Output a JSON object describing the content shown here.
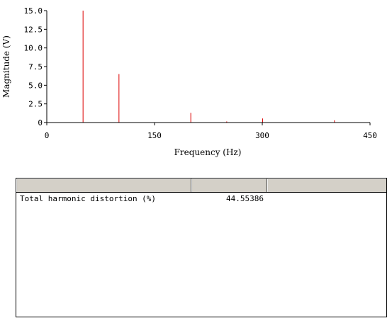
{
  "chart_data": {
    "type": "bar",
    "xlabel": "Frequency (Hz)",
    "ylabel": "Magnitude (V)",
    "xlim": [
      0,
      450
    ],
    "ylim": [
      0,
      15
    ],
    "xticks": [
      0,
      150,
      300,
      450
    ],
    "xtick_labels": [
      "0",
      "150",
      "300",
      "450"
    ],
    "yticks": [
      0,
      2.5,
      5,
      7.5,
      10,
      12.5,
      15
    ],
    "ytick_labels": [
      "0",
      "2.5",
      "5.0",
      "7.5",
      "10.0",
      "12.5",
      "15.0"
    ],
    "grid": false,
    "line_color": "#dd0000",
    "points": [
      {
        "x": 50,
        "y": 15.0
      },
      {
        "x": 100,
        "y": 6.5
      },
      {
        "x": 200,
        "y": 1.3
      },
      {
        "x": 250,
        "y": 0.15
      },
      {
        "x": 300,
        "y": 0.55
      },
      {
        "x": 400,
        "y": 0.3
      }
    ]
  },
  "results": {
    "headers": [
      "",
      "",
      ""
    ],
    "rows": [
      {
        "name": "Total harmonic distortion (%)",
        "value": "44.55386"
      }
    ]
  }
}
